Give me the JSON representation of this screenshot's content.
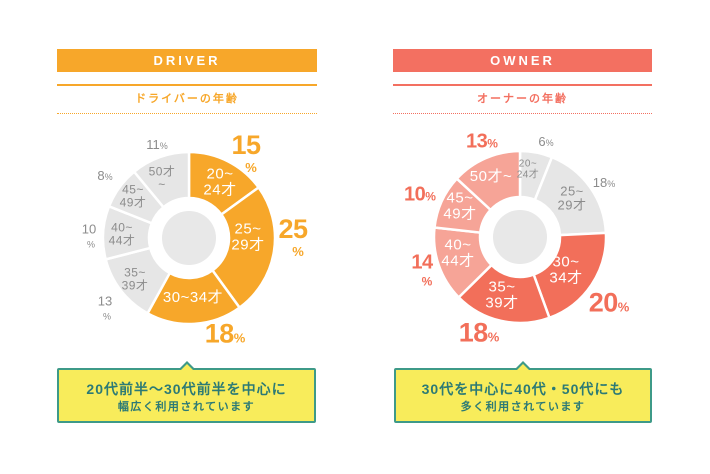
{
  "panels": [
    {
      "header": "DRIVER",
      "accent": "#F7A72A",
      "callout": {
        "line1": "20代前半～30代前半を中心に",
        "line2": "幅広く利用されています"
      }
    },
    {
      "header": "OWNER",
      "accent": "#F37061",
      "callout": {
        "line1": "30代を中心に40代・50代にも",
        "line2": "多く利用されています"
      }
    }
  ],
  "callout_style": {
    "background": "#F8EC5B",
    "border": "#3E9A88",
    "text": "#2C7A75"
  },
  "chart_data": [
    {
      "type": "pie",
      "donut": true,
      "title": "ドライバーの年齢",
      "unit": "%",
      "slices": [
        {
          "label_lines": [
            "20~",
            "24才"
          ],
          "value": 15,
          "color": "#F7A72A",
          "text_color": "#FFFFFF",
          "value_color": "#F7A72A"
        },
        {
          "label_lines": [
            "25~",
            "29才"
          ],
          "value": 25,
          "color": "#F7A72A",
          "text_color": "#FFFFFF",
          "value_color": "#F7A72A"
        },
        {
          "label_lines": [
            "30~34才"
          ],
          "value": 18,
          "color": "#F7A72A",
          "text_color": "#FFFFFF",
          "value_color": "#F7A72A"
        },
        {
          "label_lines": [
            "35~",
            "39才"
          ],
          "value": 13,
          "color": "#E6E6E6",
          "text_color": "#8C8C8C",
          "value_color": "#8C8C8C"
        },
        {
          "label_lines": [
            "40~",
            "44才"
          ],
          "value": 10,
          "color": "#E6E6E6",
          "text_color": "#8C8C8C",
          "value_color": "#8C8C8C"
        },
        {
          "label_lines": [
            "45~",
            "49才"
          ],
          "value": 8,
          "color": "#E6E6E6",
          "text_color": "#8C8C8C",
          "value_color": "#8C8C8C"
        },
        {
          "label_lines": [
            "50才",
            "~"
          ],
          "value": 11,
          "color": "#E6E6E6",
          "text_color": "#8C8C8C",
          "value_color": "#8C8C8C"
        }
      ]
    },
    {
      "type": "pie",
      "donut": true,
      "title": "オーナーの年齢",
      "unit": "%",
      "slices": [
        {
          "label_lines": [
            "20~",
            "24才"
          ],
          "value": 6,
          "color": "#E6E6E6",
          "text_color": "#8C8C8C",
          "value_color": "#8C8C8C"
        },
        {
          "label_lines": [
            "25~",
            "29才"
          ],
          "value": 18,
          "color": "#E6E6E6",
          "text_color": "#8C8C8C",
          "value_color": "#8C8C8C"
        },
        {
          "label_lines": [
            "30~",
            "34才"
          ],
          "value": 20,
          "color": "#F26F5A",
          "text_color": "#FFFFFF",
          "value_color": "#F26F5A"
        },
        {
          "label_lines": [
            "35~",
            "39才"
          ],
          "value": 18,
          "color": "#F26F5A",
          "text_color": "#FFFFFF",
          "value_color": "#F26F5A"
        },
        {
          "label_lines": [
            "40~",
            "44才"
          ],
          "value": 14,
          "color": "#F6A497",
          "text_color": "#FFFFFF",
          "value_color": "#F26F5A"
        },
        {
          "label_lines": [
            "45~",
            "49才"
          ],
          "value": 10,
          "color": "#F6A497",
          "text_color": "#FFFFFF",
          "value_color": "#F26F5A"
        },
        {
          "label_lines": [
            "50才~"
          ],
          "value": 13,
          "color": "#F6A497",
          "text_color": "#FFFFFF",
          "value_color": "#F26F5A"
        }
      ]
    }
  ]
}
